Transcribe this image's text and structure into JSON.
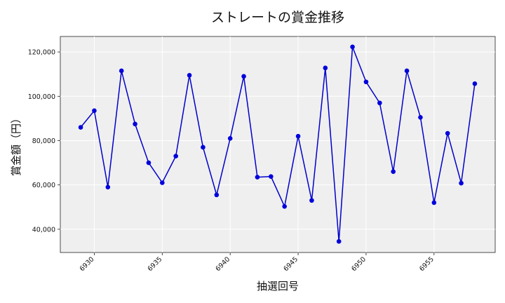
{
  "chart_data": {
    "type": "line",
    "title": "ストレートの賞金推移",
    "xlabel": "抽選回号",
    "ylabel": "賞金額（円）",
    "x": [
      6929,
      6930,
      6931,
      6932,
      6933,
      6934,
      6935,
      6936,
      6937,
      6938,
      6939,
      6940,
      6941,
      6942,
      6943,
      6944,
      6945,
      6946,
      6947,
      6948,
      6949,
      6950,
      6951,
      6952,
      6953,
      6954,
      6955,
      6956,
      6957,
      6958
    ],
    "series": [
      {
        "values": [
          86000,
          93500,
          59000,
          111500,
          87500,
          70000,
          61000,
          73000,
          109500,
          77000,
          55500,
          81000,
          109000,
          63500,
          63800,
          50300,
          82000,
          53000,
          112800,
          34500,
          122300,
          106500,
          97000,
          66000,
          111500,
          90500,
          52000,
          83300,
          60800,
          105700
        ]
      }
    ],
    "xticks": [
      6930,
      6935,
      6940,
      6945,
      6950,
      6955
    ],
    "xtick_labels": [
      "6930",
      "6935",
      "6940",
      "6945",
      "6950",
      "6955"
    ],
    "yticks": [
      40000,
      60000,
      80000,
      100000,
      120000
    ],
    "ytick_labels": [
      "40,000",
      "60,000",
      "80,000",
      "100,000",
      "120,000"
    ],
    "xlim": [
      6927.5,
      6959.5
    ],
    "ylim": [
      29500,
      127000
    ],
    "grid": true,
    "colors": {
      "line": "#0000cc",
      "marker": "#0000dd",
      "plot_bg": "#efefef",
      "grid": "#ffffff"
    }
  }
}
